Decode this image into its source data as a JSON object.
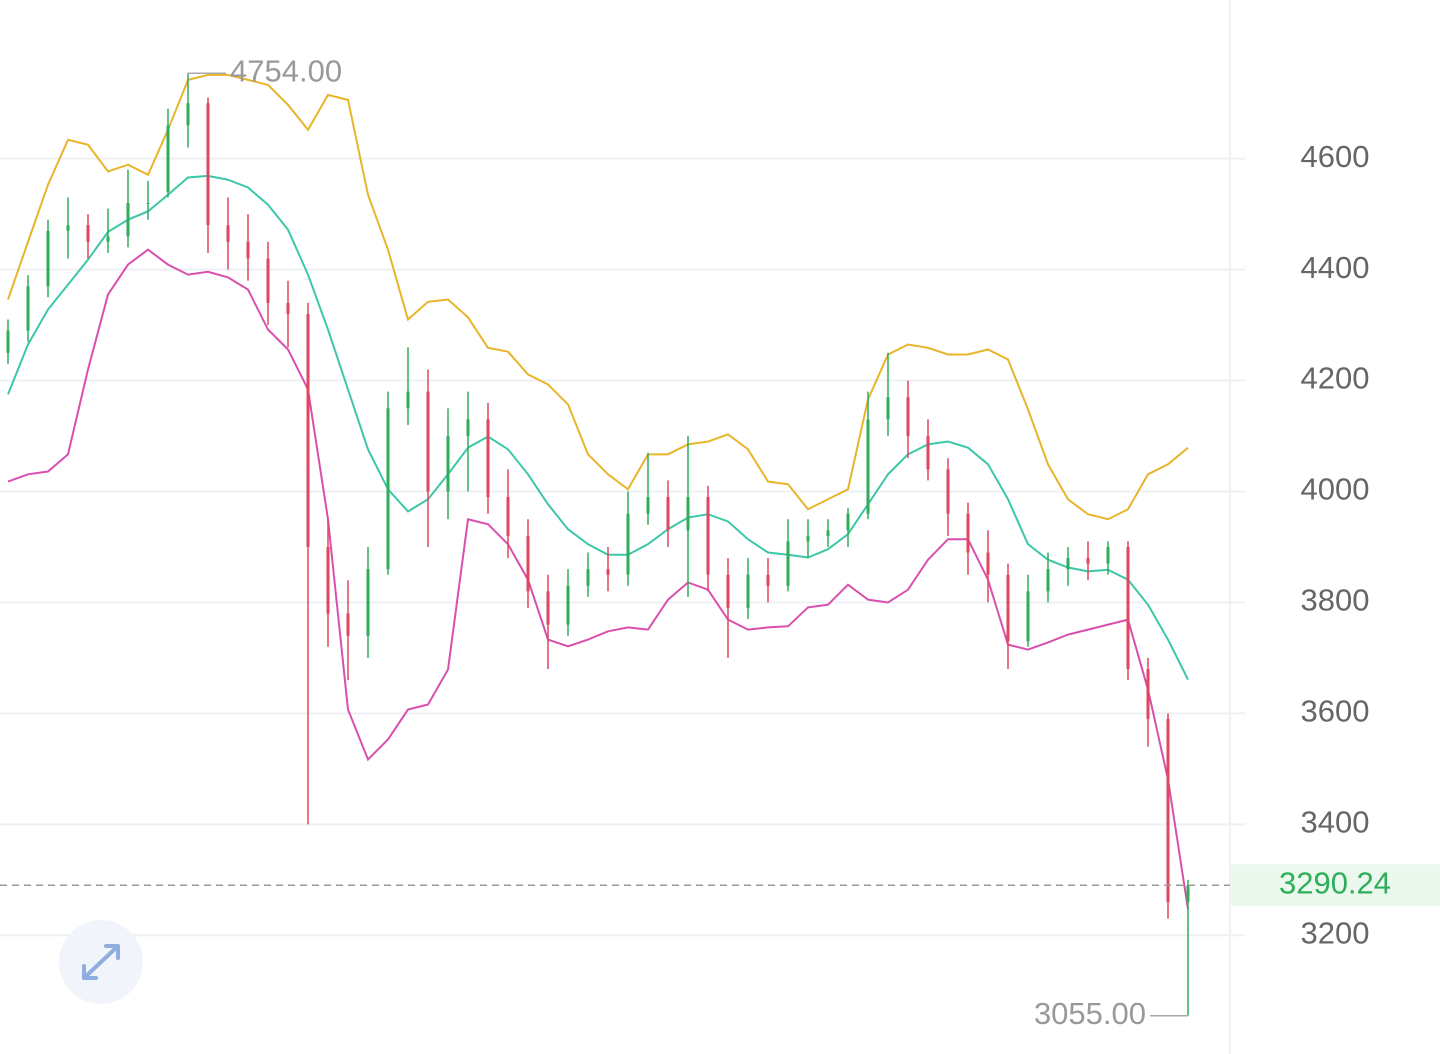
{
  "chart_data": {
    "type": "candlestick",
    "open": [
      4250,
      4290,
      4370,
      4470,
      4480,
      4450,
      4460,
      4520,
      4540,
      4660,
      4700,
      4480,
      4450,
      4420,
      4340,
      4320,
      3900,
      3780,
      3740,
      3860,
      4150,
      4180,
      4000,
      4100,
      4130,
      3990,
      3920,
      3820,
      3760,
      3830,
      3860,
      3850,
      3960,
      3990,
      3930,
      3990,
      3850,
      3790,
      3850,
      3830,
      3910,
      3920,
      3930,
      3960,
      4130,
      4170,
      4100,
      4040,
      3960,
      3890,
      3850,
      3730,
      3820,
      3860,
      3880,
      3870,
      3900,
      3680,
      3590,
      3260
    ],
    "high": [
      4310,
      4390,
      4490,
      4530,
      4500,
      4510,
      4580,
      4560,
      4690,
      4754,
      4710,
      4530,
      4500,
      4450,
      4380,
      4340,
      3950,
      3840,
      3900,
      4180,
      4260,
      4220,
      4150,
      4180,
      4160,
      4040,
      3950,
      3850,
      3860,
      3890,
      3900,
      4000,
      4070,
      4020,
      4100,
      4010,
      3880,
      3880,
      3880,
      3950,
      3950,
      3950,
      3970,
      4180,
      4250,
      4200,
      4130,
      4060,
      3980,
      3930,
      3870,
      3850,
      3890,
      3900,
      3910,
      3910,
      3910,
      3700,
      3600,
      3300
    ],
    "low": [
      4230,
      4270,
      4350,
      4420,
      4420,
      4430,
      4440,
      4490,
      4530,
      4620,
      4430,
      4400,
      4380,
      4300,
      4260,
      3400,
      3720,
      3660,
      3700,
      3850,
      4120,
      3900,
      3950,
      4000,
      3960,
      3880,
      3790,
      3680,
      3740,
      3810,
      3820,
      3830,
      3940,
      3900,
      3810,
      3820,
      3700,
      3770,
      3800,
      3820,
      3880,
      3900,
      3900,
      3950,
      4100,
      4060,
      4020,
      3920,
      3850,
      3800,
      3680,
      3720,
      3800,
      3830,
      3840,
      3850,
      3660,
      3540,
      3230,
      3055
    ],
    "close": [
      4290,
      4370,
      4470,
      4480,
      4450,
      4460,
      4520,
      4520,
      4660,
      4700,
      4480,
      4450,
      4420,
      4340,
      4320,
      3900,
      3780,
      3740,
      3860,
      4150,
      4180,
      4000,
      4100,
      4130,
      3990,
      3920,
      3820,
      3760,
      3830,
      3860,
      3850,
      3960,
      3990,
      3930,
      3990,
      3850,
      3790,
      3850,
      3830,
      3910,
      3920,
      3930,
      3960,
      4130,
      4170,
      4100,
      4040,
      3960,
      3890,
      3850,
      3730,
      3820,
      3860,
      3880,
      3870,
      3900,
      3680,
      3590,
      3260,
      3290.24
    ],
    "up_color": "#2fae5a",
    "down_color": "#e0475f",
    "lines": [
      {
        "color": "#e8b52a",
        "values": [
          4346,
          4450,
          4553,
          4634,
          4625,
          4577,
          4589,
          4571,
          4652,
          4742,
          4751,
          4751,
          4742,
          4733,
          4697,
          4652,
          4715,
          4706,
          4535,
          4436,
          4310,
          4342,
          4346,
          4314,
          4259,
          4252,
          4211,
          4193,
          4157,
          4067,
          4031,
          4004,
          4067,
          4067,
          4085,
          4090,
          4103,
          4076,
          4018,
          4013,
          3968,
          3986,
          4004,
          4166,
          4247,
          4265,
          4259,
          4247,
          4247,
          4256,
          4238,
          4148,
          4049,
          3986,
          3959,
          3950,
          3968,
          4031,
          4049,
          4079
        ]
      },
      {
        "color": "#3cc7a8",
        "values": [
          4175,
          4265,
          4328,
          4373,
          4418,
          4468,
          4490,
          4505,
          4535,
          4566,
          4569,
          4562,
          4548,
          4517,
          4472,
          4391,
          4292,
          4184,
          4076,
          4004,
          3964,
          3986,
          4031,
          4079,
          4099,
          4076,
          4031,
          3977,
          3932,
          3905,
          3886,
          3886,
          3905,
          3932,
          3953,
          3959,
          3946,
          3914,
          3890,
          3886,
          3881,
          3896,
          3923,
          3977,
          4031,
          4067,
          4085,
          4090,
          4079,
          4049,
          3986,
          3905,
          3877,
          3863,
          3856,
          3859,
          3841,
          3796,
          3733,
          3661
        ]
      },
      {
        "color": "#d94fae",
        "values": [
          4018,
          4031,
          4036,
          4067,
          4220,
          4355,
          4409,
          4436,
          4409,
          4391,
          4396,
          4386,
          4364,
          4292,
          4256,
          4184,
          3950,
          3607,
          3517,
          3553,
          3607,
          3616,
          3679,
          3950,
          3941,
          3905,
          3841,
          3733,
          3721,
          3733,
          3748,
          3755,
          3751,
          3805,
          3836,
          3823,
          3769,
          3751,
          3755,
          3757,
          3791,
          3796,
          3832,
          3805,
          3800,
          3823,
          3877,
          3914,
          3914,
          3841,
          3724,
          3715,
          3728,
          3742,
          3751,
          3760,
          3769,
          3643,
          3481,
          3247
        ]
      }
    ],
    "ylim": [
      2986,
      4886
    ],
    "yticks": [
      3200,
      3400,
      3600,
      3800,
      4000,
      4200,
      4400,
      4600
    ],
    "grid": true,
    "max_label": {
      "value": 4754,
      "label": "4754.00"
    },
    "min_label": {
      "value": 3055,
      "label": "3055.00"
    },
    "last_price": 3290.24
  }
}
